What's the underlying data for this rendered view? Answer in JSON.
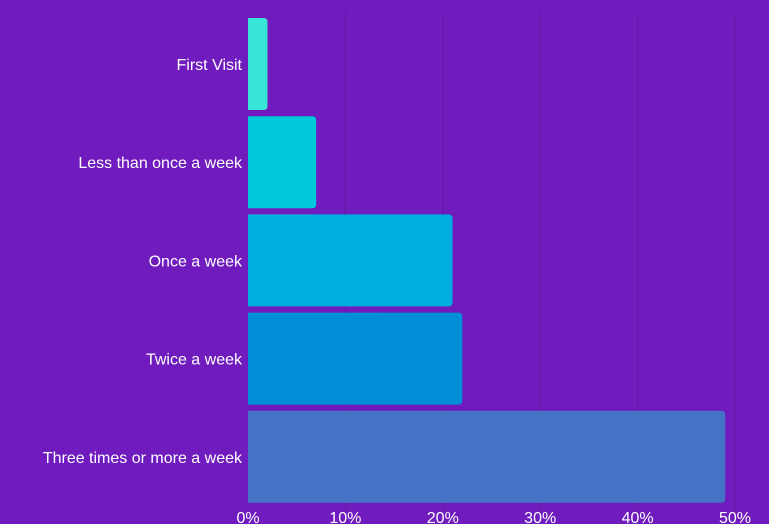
{
  "chart_data": {
    "type": "bar",
    "orientation": "horizontal",
    "categories": [
      "First Visit",
      "Less than once a week",
      "Once a week",
      "Twice a week",
      "Three times or more a week"
    ],
    "values": [
      2,
      7,
      21,
      22,
      49
    ],
    "unit": "%",
    "xlim": [
      0,
      50
    ],
    "x_ticks": [
      "0%",
      "10%",
      "20%",
      "30%",
      "40%",
      "50%"
    ],
    "grid": "vertical",
    "bar_colors": [
      "#36e5d7",
      "#00c9dc",
      "#00addf",
      "#008fd7",
      "#4472c4"
    ],
    "background": "#6f1bbd",
    "grid_color": "#6419a3",
    "text_color": "#ffffff"
  }
}
